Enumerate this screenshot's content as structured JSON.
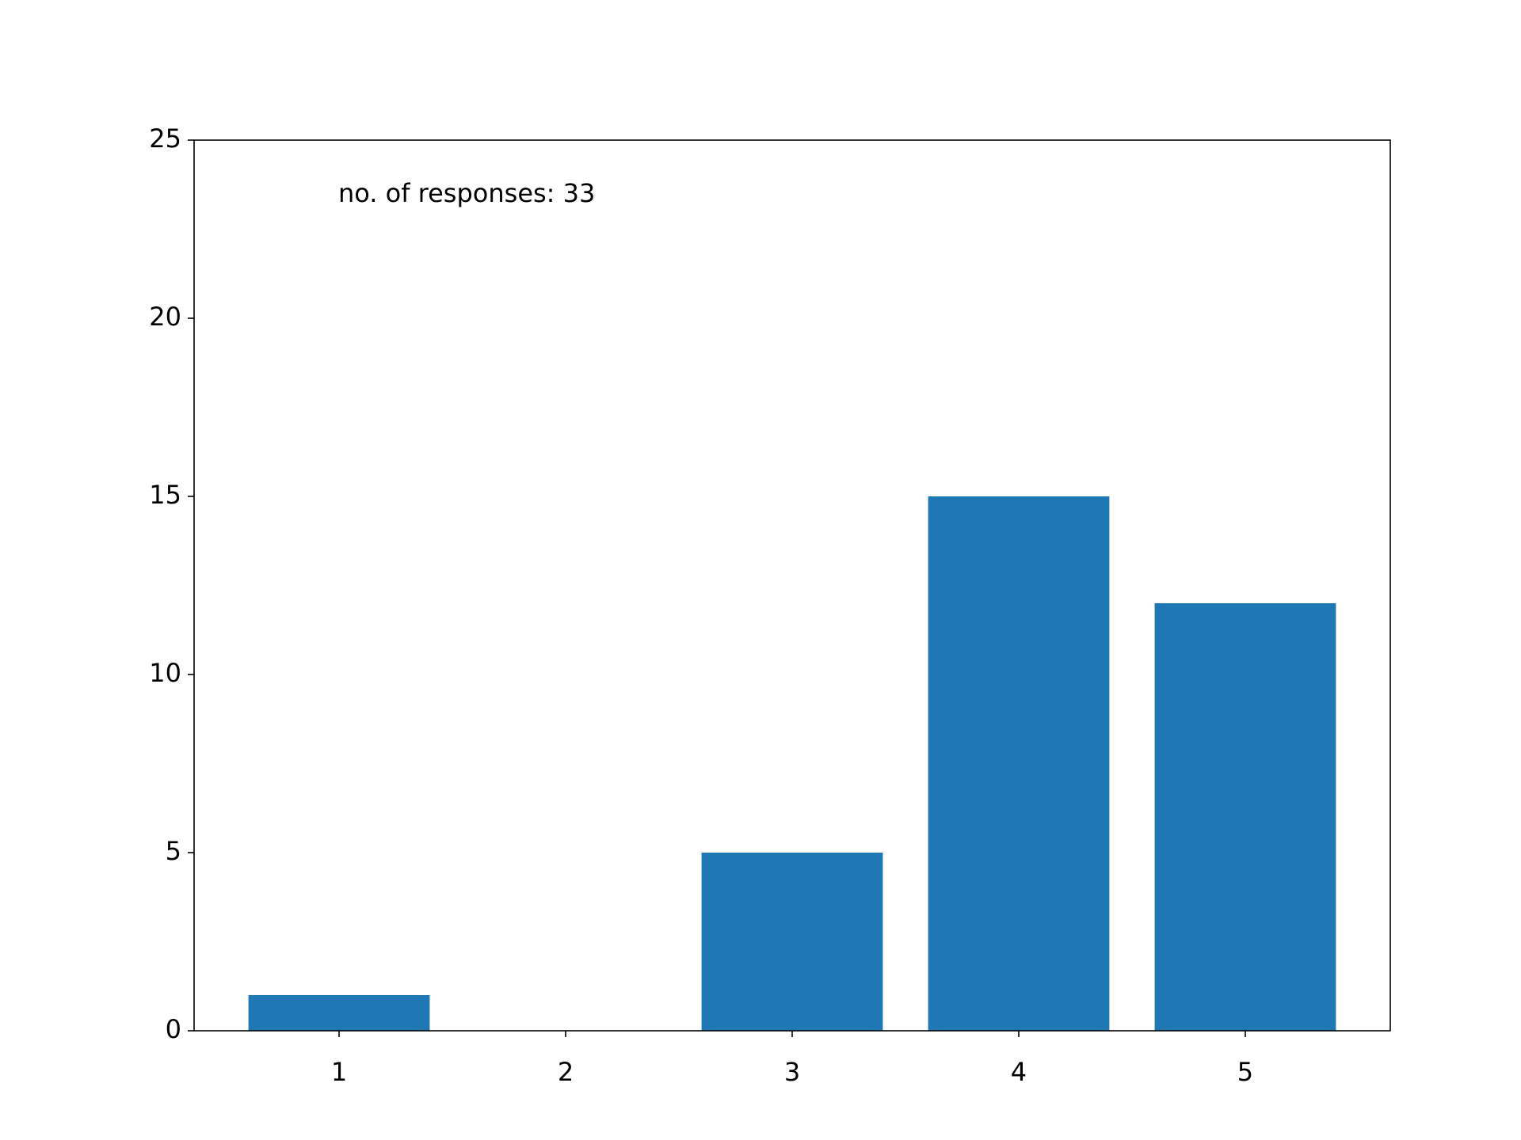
{
  "chart_data": {
    "type": "bar",
    "annotation": "no. of responses: 33",
    "x": [
      1,
      2,
      3,
      4,
      5
    ],
    "values": [
      1,
      0,
      5,
      15,
      12
    ],
    "color": "#1f77b4",
    "xlim": [
      0.36,
      5.64
    ],
    "xticks": [
      1,
      2,
      3,
      4,
      5
    ],
    "ylim": [
      0,
      25
    ],
    "yticks": [
      0,
      5,
      10,
      15,
      20,
      25
    ]
  }
}
